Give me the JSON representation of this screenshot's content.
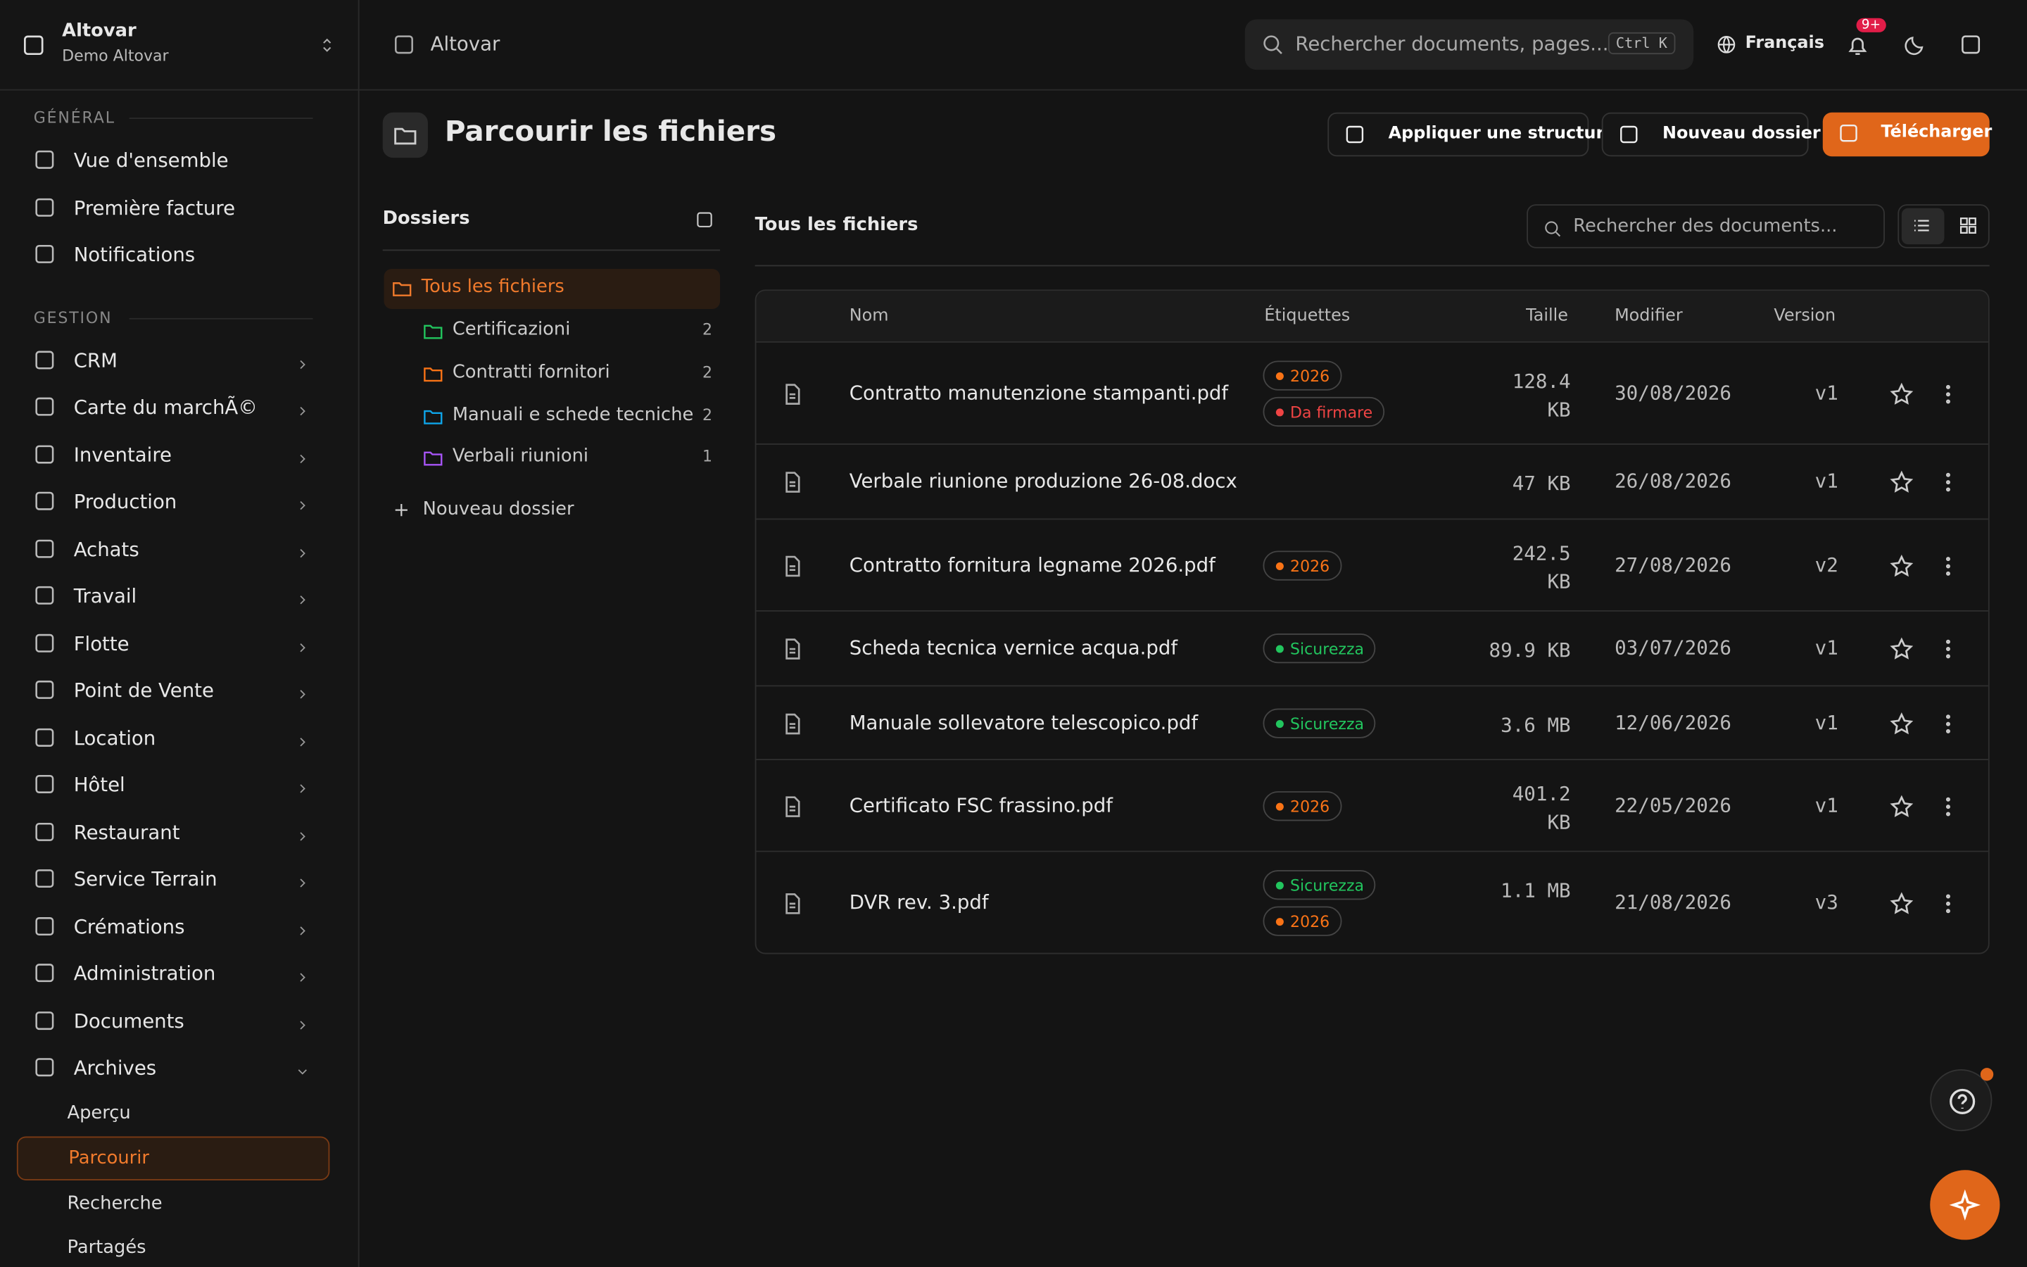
{
  "sidebar": {
    "org": "Altovar",
    "org_sub": "Demo Altovar",
    "sections": [
      {
        "title": "GÉNÉRAL",
        "items": [
          "Vue d'ensemble",
          "Première facture",
          "Notifications"
        ]
      },
      {
        "title": "GESTION",
        "items": [
          "CRM",
          "Carte du marchÃ©",
          "Inventaire",
          "Production",
          "Achats",
          "Travail",
          "Flotte",
          "Point de Vente",
          "Location",
          "Hôtel",
          "Restaurant",
          "Service Terrain",
          "Crémations",
          "Administration",
          "Documents",
          "Archives"
        ]
      }
    ],
    "subitems": [
      "Aperçu",
      "Parcourir",
      "Recherche",
      "Partagés"
    ]
  },
  "topbar": {
    "breadcrumb": "Altovar",
    "search": "Rechercher documents, pages...",
    "shortcut": "Ctrl K",
    "language": "Français",
    "badge": "9+"
  },
  "page": {
    "title": "Parcourir les fichiers",
    "actions": [
      "Appliquer une structure",
      "Nouveau dossier",
      "Télécharger"
    ]
  },
  "folders": {
    "title": "Dossiers",
    "all": "Tous les fichiers",
    "items": [
      {
        "name": "Certificazioni",
        "count": 2,
        "color": "#22c55e"
      },
      {
        "name": "Contratti fornitori",
        "count": 2,
        "color": "#f97316"
      },
      {
        "name": "Manuali e schede tecniche",
        "count": 2,
        "color": "#0ea5e9"
      },
      {
        "name": "Verbali riunioni",
        "count": 1,
        "color": "#a855f7"
      }
    ],
    "new": "Nouveau dossier"
  },
  "files": {
    "title": "Tous les fichiers",
    "search": "Rechercher des documents...",
    "columns": [
      "Nom",
      "Étiquettes",
      "Taille",
      "Modifier",
      "Version"
    ],
    "rows": [
      {
        "name": "Contratto manutenzione stampanti.pdf",
        "tags": [
          {
            "label": "2026",
            "color": "#f97316"
          },
          {
            "label": "Da firmare",
            "color": "#ef4444"
          }
        ],
        "size": "128.4 KB",
        "modified": "30/08/2026",
        "version": "v1"
      },
      {
        "name": "Verbale riunione produzione 26-08.docx",
        "tags": [],
        "size": "47 KB",
        "modified": "26/08/2026",
        "version": "v1"
      },
      {
        "name": "Contratto fornitura legname 2026.pdf",
        "tags": [
          {
            "label": "2026",
            "color": "#f97316"
          }
        ],
        "size": "242.5 KB",
        "modified": "27/08/2026",
        "version": "v2"
      },
      {
        "name": "Scheda tecnica vernice acqua.pdf",
        "tags": [
          {
            "label": "Sicurezza",
            "color": "#22c55e"
          }
        ],
        "size": "89.9 KB",
        "modified": "03/07/2026",
        "version": "v1"
      },
      {
        "name": "Manuale sollevatore telescopico.pdf",
        "tags": [
          {
            "label": "Sicurezza",
            "color": "#22c55e"
          }
        ],
        "size": "3.6 MB",
        "modified": "12/06/2026",
        "version": "v1"
      },
      {
        "name": "Certificato FSC frassino.pdf",
        "tags": [
          {
            "label": "2026",
            "color": "#f97316"
          }
        ],
        "size": "401.2 KB",
        "modified": "22/05/2026",
        "version": "v1"
      },
      {
        "name": "DVR rev. 3.pdf",
        "tags": [
          {
            "label": "Sicurezza",
            "color": "#22c55e"
          },
          {
            "label": "2026",
            "color": "#f97316"
          }
        ],
        "size": "1.1 MB",
        "modified": "21/08/2026",
        "version": "v3"
      }
    ]
  }
}
